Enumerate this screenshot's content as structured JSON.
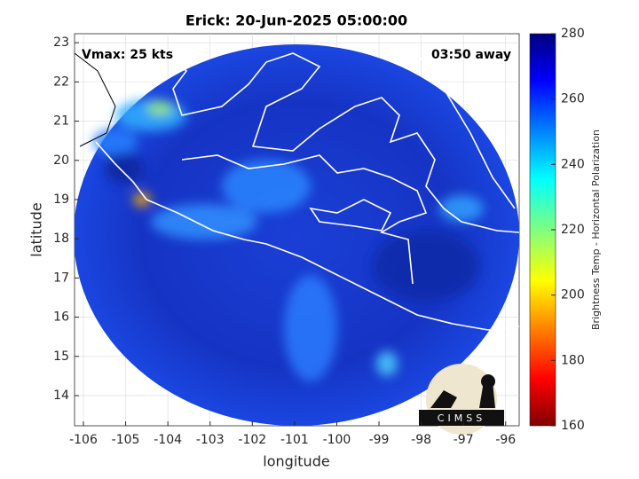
{
  "chart_data": {
    "type": "map",
    "title": "Erick: 20-Jun-2025 05:00:00",
    "annotation_left": "Vmax: 25 kts",
    "annotation_right": "03:50 away",
    "x_label": "longitude",
    "y_label": "latitude",
    "xlim": [
      -106.21,
      -95.68
    ],
    "ylim": [
      13.23,
      23.23
    ],
    "xticks": [
      -106,
      -105,
      -104,
      -103,
      -102,
      -101,
      -100,
      -99,
      -98,
      -97,
      -96
    ],
    "yticks": [
      14,
      15,
      16,
      17,
      18,
      19,
      20,
      21,
      22,
      23
    ],
    "grid": true,
    "colorbar": {
      "label": "Brightness Temp - Horizontal Polarization",
      "lim": [
        160,
        280
      ],
      "ticks": [
        160,
        180,
        200,
        220,
        240,
        260,
        280
      ]
    },
    "logo": "CIMSS"
  }
}
